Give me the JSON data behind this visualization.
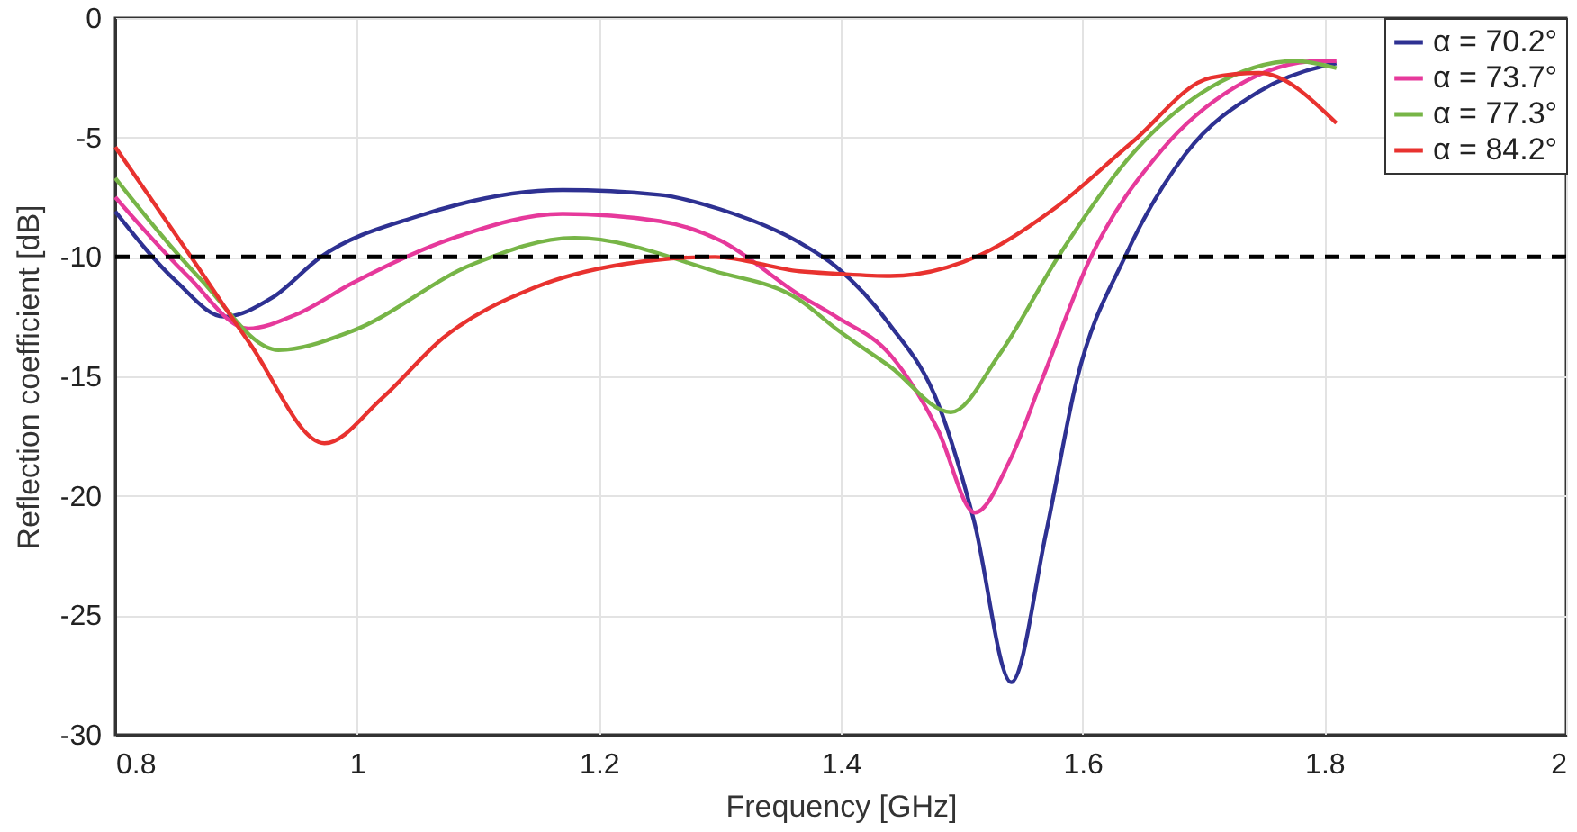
{
  "chart_data": {
    "type": "line",
    "xlabel": "Frequency [GHz]",
    "ylabel": "Reflection coefficient [dB]",
    "xlim": [
      0.8,
      2
    ],
    "xticks": [
      0.8,
      1,
      1.2,
      1.4,
      1.6,
      1.8,
      2
    ],
    "ylim": [
      -30,
      0
    ],
    "yticks": [
      -30,
      -25,
      -20,
      -15,
      -10,
      -5,
      0
    ],
    "grid": true,
    "legend": "top right",
    "line_style": "solid",
    "marker": "none",
    "ref_lines": [
      {
        "axis": "y",
        "value": -10,
        "color": "#000000",
        "line_style": "dashed"
      }
    ],
    "series": [
      {
        "name": "α = 70.2°",
        "color": "#2e3192",
        "x": [
          0.8,
          0.85,
          0.89,
          0.93,
          0.97,
          1.05,
          1.17,
          1.25,
          1.3,
          1.366,
          1.396,
          1.44,
          1.481,
          1.51,
          1.541,
          1.57,
          1.595,
          1.636,
          1.685,
          1.745,
          1.8,
          1.81
        ],
        "values": [
          -8.1,
          -11.0,
          -12.5,
          -11.7,
          -10.0,
          -8.3,
          -7.2,
          -7.4,
          -8.0,
          -9.4,
          -10.4,
          -12.8,
          -16.2,
          -21.0,
          -27.8,
          -21.5,
          -15.2,
          -9.9,
          -5.7,
          -3.1,
          -2.0,
          -1.9
        ]
      },
      {
        "name": "α = 73.7°",
        "color": "#e6399b",
        "x": [
          0.8,
          0.86,
          0.91,
          0.95,
          0.996,
          1.08,
          1.17,
          1.25,
          1.3,
          1.366,
          1.396,
          1.441,
          1.48,
          1.511,
          1.54,
          1.566,
          1.606,
          1.666,
          1.726,
          1.796,
          1.81
        ],
        "values": [
          -7.5,
          -10.8,
          -13.0,
          -12.4,
          -11.1,
          -9.2,
          -8.2,
          -8.5,
          -9.3,
          -11.6,
          -12.5,
          -14.1,
          -17.2,
          -20.7,
          -18.5,
          -15.2,
          -10.1,
          -5.5,
          -2.9,
          -1.8,
          -1.8
        ]
      },
      {
        "name": "α = 77.3°",
        "color": "#77b547",
        "x": [
          0.8,
          0.87,
          0.935,
          0.996,
          1.096,
          1.18,
          1.296,
          1.366,
          1.396,
          1.441,
          1.491,
          1.531,
          1.581,
          1.641,
          1.706,
          1.776,
          1.81
        ],
        "values": [
          -6.7,
          -10.9,
          -13.9,
          -13.1,
          -10.3,
          -9.2,
          -10.6,
          -11.8,
          -13.0,
          -14.6,
          -16.5,
          -14.1,
          -9.9,
          -5.7,
          -2.9,
          -1.8,
          -2.1
        ]
      },
      {
        "name": "α = 84.2°",
        "color": "#e8322f",
        "x": [
          0.8,
          0.86,
          0.911,
          0.973,
          1.021,
          1.071,
          1.146,
          1.221,
          1.296,
          1.366,
          1.396,
          1.441,
          1.516,
          1.576,
          1.641,
          1.706,
          1.746,
          1.81
        ],
        "values": [
          -5.4,
          -9.8,
          -13.6,
          -17.8,
          -15.9,
          -13.4,
          -11.3,
          -10.3,
          -10.0,
          -10.6,
          -10.7,
          -10.8,
          -9.9,
          -8.0,
          -5.2,
          -2.5,
          -2.3,
          -4.4
        ]
      }
    ]
  }
}
